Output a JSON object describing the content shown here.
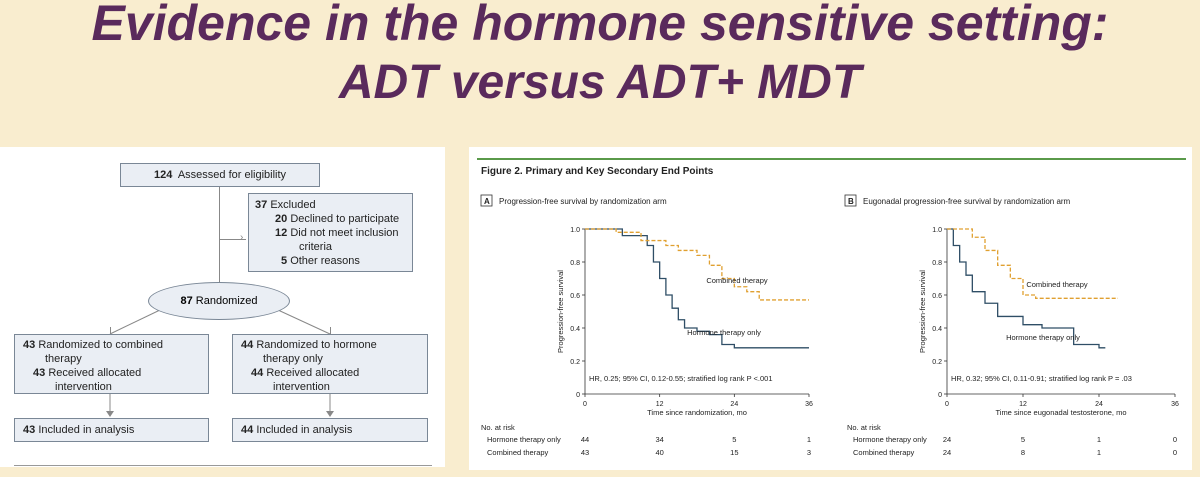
{
  "slide": {
    "title_line1": "Evidence in the hormone sensitive setting:",
    "title_line2": "ADT versus ADT+ MDT"
  },
  "flow": {
    "assessed": {
      "n": "124",
      "label": "Assessed for eligibility"
    },
    "excluded": {
      "n": "37",
      "label": "Excluded"
    },
    "declined": {
      "n": "20",
      "label": "Declined to participate"
    },
    "notmet": {
      "n": "12",
      "label1": "Did not meet inclusion",
      "label2": "criteria"
    },
    "other": {
      "n": "5",
      "label": "Other reasons"
    },
    "randomized": {
      "n": "87",
      "label": "Randomized"
    },
    "arm_combined": {
      "n": "43",
      "label1": "Randomized to combined",
      "label2": "therapy",
      "rn": "43",
      "recv1": "Received allocated",
      "recv2": "intervention"
    },
    "arm_hormone": {
      "n": "44",
      "label1": "Randomized to hormone",
      "label2": "therapy only",
      "rn": "44",
      "recv1": "Received allocated",
      "recv2": "intervention"
    },
    "analysis_combined": {
      "n": "43",
      "label": "Included in analysis"
    },
    "analysis_hormone": {
      "n": "44",
      "label": "Included in analysis"
    }
  },
  "figure": {
    "title": "Figure 2. Primary and Key Secondary End Points",
    "colors": {
      "hormone": "#2f4e66",
      "combined": "#e0a030",
      "figure_rule": "#5a9a4a"
    },
    "risk_header": "No. at risk",
    "panels": [
      {
        "letter": "A",
        "heading": "Progression-free survival by randomization arm",
        "ylabel": "Progression-free survival",
        "xlabel": "Time since randomization, mo",
        "xticks": [
          "0",
          "12",
          "24",
          "36"
        ],
        "yticks": [
          "0",
          "0.2",
          "0.4",
          "0.6",
          "0.8",
          "1.0"
        ],
        "label_combined": "Combined therapy",
        "label_hormone": "Hormone therapy only",
        "hr_text": "HR, 0.25; 95% CI, 0.12-0.55; stratified log rank P <.001",
        "risk_rows": [
          {
            "label": "Hormone therapy only",
            "values": [
              "44",
              "34",
              "5",
              "1"
            ]
          },
          {
            "label": "Combined therapy",
            "values": [
              "43",
              "40",
              "15",
              "3"
            ]
          }
        ]
      },
      {
        "letter": "B",
        "heading": "Eugonadal progression-free survival by randomization arm",
        "ylabel": "Progression-free survival",
        "xlabel": "Time since eugonadal testosterone, mo",
        "xticks": [
          "0",
          "12",
          "24",
          "36"
        ],
        "yticks": [
          "0",
          "0.2",
          "0.4",
          "0.6",
          "0.8",
          "1.0"
        ],
        "label_combined": "Combined therapy",
        "label_hormone": "Hormone therapy only",
        "hr_text": "HR, 0.32; 95% CI, 0.11-0.91; stratified log rank P = .03",
        "risk_rows": [
          {
            "label": "Hormone therapy only",
            "values": [
              "24",
              "5",
              "1",
              "0"
            ]
          },
          {
            "label": "Combined therapy",
            "values": [
              "24",
              "8",
              "1",
              "0"
            ]
          }
        ]
      }
    ]
  },
  "chart_data": [
    {
      "type": "line",
      "title": "Progression-free survival by randomization arm",
      "xlabel": "Time since randomization, mo",
      "ylabel": "Progression-free survival",
      "xlim": [
        0,
        36
      ],
      "ylim": [
        0,
        1.0
      ],
      "series": [
        {
          "name": "Hormone therapy only",
          "x": [
            0,
            6,
            10,
            11,
            12,
            13,
            14,
            15,
            16,
            18,
            20,
            22,
            24,
            36
          ],
          "y": [
            1.0,
            0.96,
            0.9,
            0.8,
            0.7,
            0.6,
            0.52,
            0.45,
            0.4,
            0.38,
            0.36,
            0.3,
            0.28,
            0.28
          ]
        },
        {
          "name": "Combined therapy",
          "x": [
            0,
            5,
            9,
            13,
            15,
            18,
            20,
            22,
            24,
            26,
            28,
            36
          ],
          "y": [
            1.0,
            0.98,
            0.93,
            0.9,
            0.87,
            0.84,
            0.78,
            0.7,
            0.65,
            0.62,
            0.57,
            0.57
          ]
        }
      ]
    },
    {
      "type": "line",
      "title": "Eugonadal progression-free survival by randomization arm",
      "xlabel": "Time since eugonadal testosterone, mo",
      "ylabel": "Progression-free survival",
      "xlim": [
        0,
        36
      ],
      "ylim": [
        0,
        1.0
      ],
      "series": [
        {
          "name": "Hormone therapy only",
          "x": [
            0,
            1,
            2,
            3,
            4,
            6,
            8,
            12,
            15,
            20,
            24,
            25
          ],
          "y": [
            1.0,
            0.9,
            0.8,
            0.72,
            0.62,
            0.55,
            0.47,
            0.42,
            0.4,
            0.3,
            0.28,
            0.28
          ]
        },
        {
          "name": "Combined therapy",
          "x": [
            0,
            2,
            4,
            6,
            8,
            10,
            12,
            14,
            27
          ],
          "y": [
            1.0,
            1.0,
            0.95,
            0.87,
            0.78,
            0.7,
            0.6,
            0.58,
            0.58
          ]
        }
      ]
    }
  ]
}
